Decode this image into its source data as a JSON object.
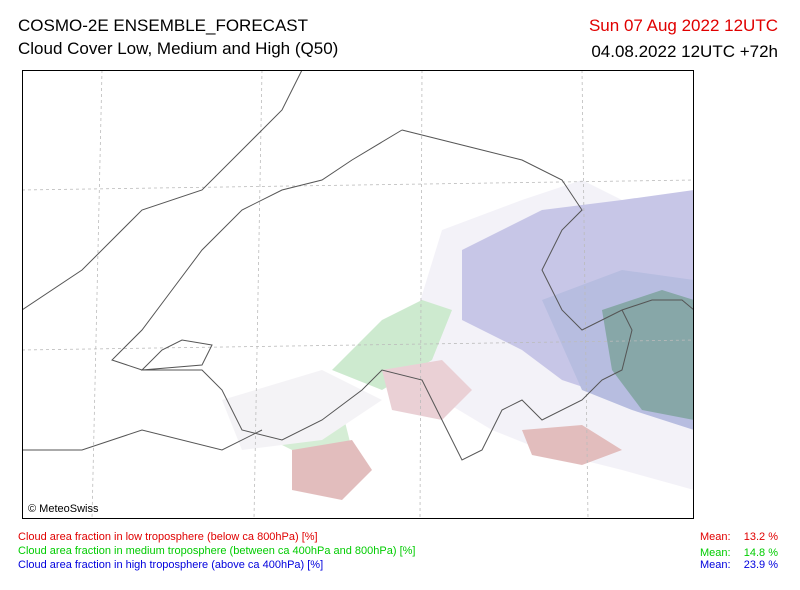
{
  "header": {
    "title": "COSMO-2E ENSEMBLE_FORECAST",
    "subtitle": "Cloud Cover Low, Medium and High (Q50)",
    "valid_time": "Sun 07 Aug 2022 12UTC",
    "run": "04.08.2022 12UTC +72h"
  },
  "map": {
    "copyright": "© MeteoSwiss"
  },
  "legend": [
    {
      "label": "Cloud area fraction in low troposphere (below ca 800hPa) [%]",
      "mean_label": "Mean:",
      "mean": "13.2 %"
    },
    {
      "label": "Cloud area fraction in medium troposphere (between ca 400hPa and 800hPa) [%]",
      "mean_label": "Mean:",
      "mean": "14.8 %"
    },
    {
      "label": "Cloud area fraction in high troposphere (above ca 400hPa) [%]",
      "mean_label": "Mean:",
      "mean": "23.9 %"
    }
  ]
}
